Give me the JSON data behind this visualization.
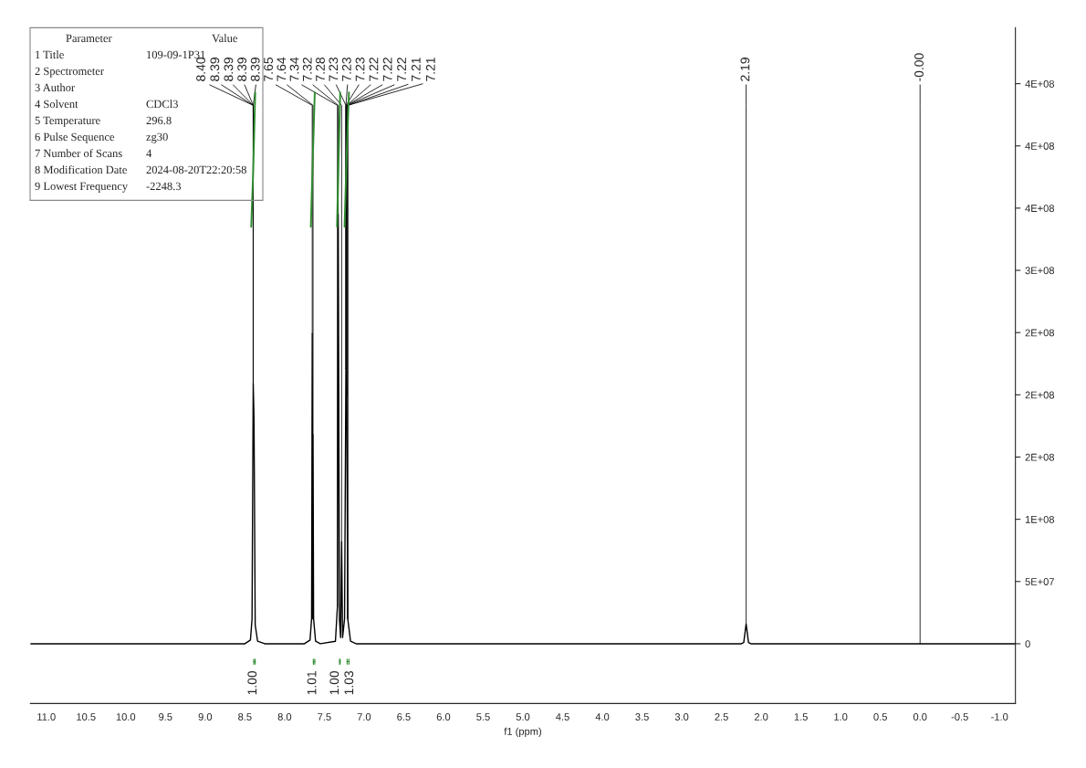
{
  "chart_data": {
    "type": "line",
    "xlabel": "f1 (ppm)",
    "xlim": [
      11.2,
      -1.2
    ],
    "xticks": [
      {
        "value": 11,
        "label": "11.0"
      },
      10.5,
      {
        "value": 10,
        "label": "10.0"
      },
      9.5,
      {
        "value": 9,
        "label": "9.0"
      },
      8.5,
      {
        "value": 8,
        "label": "8.0"
      },
      7.5,
      {
        "value": 7,
        "label": "7.0"
      },
      6.5,
      {
        "value": 6,
        "label": "6.0"
      },
      5.5,
      {
        "value": 5,
        "label": "5.0"
      },
      4.5,
      {
        "value": 4,
        "label": "4.0"
      },
      3.5,
      {
        "value": 3,
        "label": "3.0"
      },
      2.5,
      {
        "value": 2,
        "label": "2.0"
      },
      1.5,
      {
        "value": 1,
        "label": "1.0"
      },
      0.5,
      {
        "value": 0,
        "label": "0.0"
      },
      -0.5,
      {
        "value": -1,
        "label": "-1.0"
      }
    ],
    "ylim": [
      -48000000,
      495000000
    ],
    "yticks": [
      {
        "value": 0,
        "label": "0"
      },
      {
        "value": 50000000,
        "label": "5E+07"
      },
      {
        "value": 100000000,
        "label": "1E+08"
      },
      {
        "value": 150000000,
        "label": "2E+08"
      },
      {
        "value": 200000000,
        "label": "2E+08"
      },
      {
        "value": 250000000,
        "label": "2E+08"
      },
      {
        "value": 300000000,
        "label": "3E+08"
      },
      {
        "value": 350000000,
        "label": "4E+08"
      },
      {
        "value": 400000000,
        "label": "4E+08"
      },
      {
        "value": 450000000,
        "label": "4E+08"
      }
    ],
    "grid": false,
    "series": [
      {
        "color": "#000000",
        "x": [
          11.2,
          8.5,
          8.43,
          8.41,
          8.395,
          8.385,
          8.37,
          8.34,
          8.25,
          7.75,
          7.68,
          7.66,
          7.652,
          7.646,
          7.642,
          7.635,
          7.61,
          7.55,
          7.36,
          7.335,
          7.325,
          7.31,
          7.295,
          7.282,
          7.27,
          7.245,
          7.228,
          7.218,
          7.205,
          7.17,
          7.1,
          2.25,
          2.22,
          2.19,
          2.16,
          2.13,
          -1.2
        ],
        "values": [
          0,
          0,
          3000000,
          20000000,
          209000000,
          180000000,
          15000000,
          2000000,
          0,
          0,
          3000000,
          20000000,
          249000000,
          20000000,
          168000000,
          20000000,
          2000000,
          0,
          2000000,
          30000000,
          345000000,
          20000000,
          5000000,
          82000000,
          5000000,
          20000000,
          221000000,
          200000000,
          20000000,
          2000000,
          0,
          0,
          1000000,
          16000000,
          1000000,
          0,
          0
        ]
      },
      {
        "color": "#2e8b2e",
        "x": [
          8.42,
          8.395,
          8.37,
          8.36,
          7.67,
          7.645,
          7.62,
          7.6,
          7.34,
          7.32,
          7.3,
          7.29,
          7.245,
          7.22,
          7.19
        ],
        "values": [
          335000000,
          380000000,
          443000000,
          null,
          335000000,
          390000000,
          443000000,
          null,
          335000000,
          390000000,
          443000000,
          null,
          335000000,
          390000000,
          443000000
        ]
      }
    ],
    "annotations": [
      "Parameter\tValue",
      "1 Title\t109-09-1P31",
      "2 Spectrometer\t",
      "3 Author\t",
      "4 Solvent\tCDCl3",
      "5 Temperature\t296.8",
      "6 Pulse Sequence\tzg30",
      "7 Number of Scans\t4",
      "8 Modification Date\t2024-08-20T22:20:58",
      "9 Lowest Frequency\t-2248.3",
      {
        "text": "8.40",
        "x": 8.395,
        "y": 209000000
      },
      {
        "text": "8.39",
        "x": 8.395,
        "y": 209000000
      },
      {
        "text": "8.39",
        "x": 8.395,
        "y": 209000000
      },
      {
        "text": "8.39",
        "x": 8.395,
        "y": 209000000
      },
      {
        "text": "8.39",
        "x": 8.395,
        "y": 209000000
      },
      {
        "text": "7.65",
        "x": 7.652,
        "y": 249000000
      },
      {
        "text": "7.64",
        "x": 7.642,
        "y": 168000000
      },
      {
        "text": "7.34",
        "x": 7.335,
        "y": 30000000
      },
      {
        "text": "7.32",
        "x": 7.325,
        "y": 345000000
      },
      {
        "text": "7.28",
        "x": 7.282,
        "y": 82000000
      },
      {
        "text": "7.23",
        "x": 7.228,
        "y": 221000000
      },
      {
        "text": "7.23",
        "x": 7.228,
        "y": 221000000
      },
      {
        "text": "7.23",
        "x": 7.228,
        "y": 221000000
      },
      {
        "text": "7.22",
        "x": 7.218,
        "y": 200000000
      },
      {
        "text": "7.22",
        "x": 7.218,
        "y": 200000000
      },
      {
        "text": "7.22",
        "x": 7.218,
        "y": 200000000
      },
      {
        "text": "7.21",
        "x": 7.205,
        "y": 20000000
      },
      {
        "text": "7.21",
        "x": 7.205,
        "y": 20000000
      },
      {
        "text": "2.19",
        "x": 2.19,
        "y": 16000000
      },
      {
        "text": "-0.00",
        "x": 0.0,
        "y": 0
      },
      "1.00",
      "1.01",
      "1.00",
      "1.03"
    ]
  }
}
